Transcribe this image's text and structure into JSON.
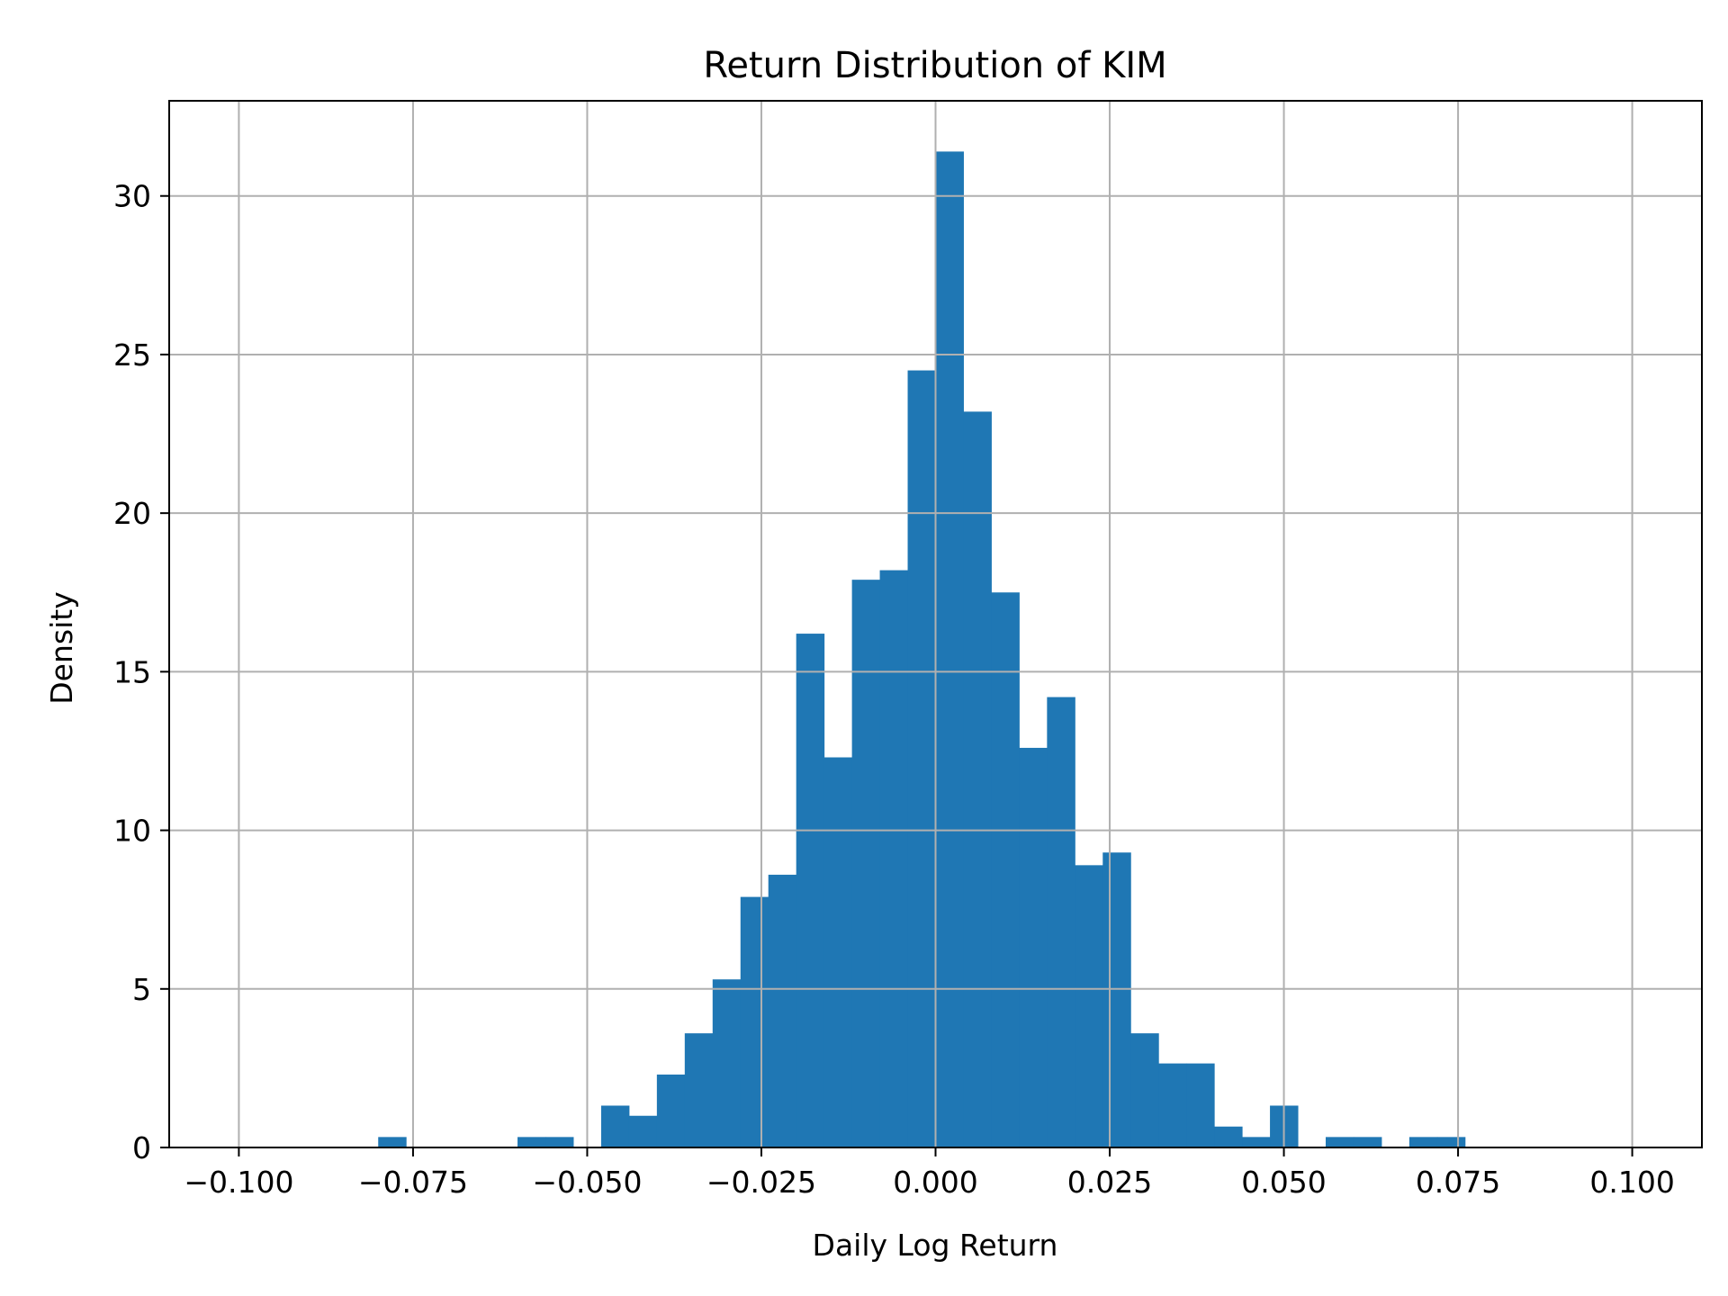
{
  "chart_data": {
    "type": "bar",
    "subtype": "histogram",
    "title": "Return Distribution of KIM",
    "xlabel": "Daily Log Return",
    "ylabel": "Density",
    "xlim": [
      -0.11,
      0.11
    ],
    "ylim": [
      0,
      33
    ],
    "grid": true,
    "legend": null,
    "bar_color": "#1f77b4",
    "grid_color": "#b0b0b0",
    "x_ticks": [
      -0.1,
      -0.075,
      -0.05,
      -0.025,
      0.0,
      0.025,
      0.05,
      0.075,
      0.1
    ],
    "x_tick_labels": [
      "−0.100",
      "−0.075",
      "−0.050",
      "−0.025",
      "0.000",
      "0.025",
      "0.050",
      "0.075",
      "0.100"
    ],
    "y_ticks": [
      0,
      5,
      10,
      15,
      20,
      25,
      30
    ],
    "y_tick_labels": [
      "0",
      "5",
      "10",
      "15",
      "20",
      "25",
      "30"
    ],
    "bin_width": 0.004,
    "bin_start": -0.08,
    "values": [
      0.33,
      0,
      0,
      0,
      0,
      0.33,
      0.33,
      0,
      1.32,
      1.0,
      2.3,
      3.6,
      5.3,
      7.9,
      8.6,
      16.2,
      12.3,
      17.9,
      18.2,
      24.5,
      31.4,
      23.2,
      17.5,
      12.6,
      14.2,
      8.9,
      9.3,
      3.6,
      2.65,
      2.65,
      0.66,
      0.33,
      1.32,
      0,
      0.33,
      0.33,
      0,
      0.33,
      0.33
    ]
  }
}
